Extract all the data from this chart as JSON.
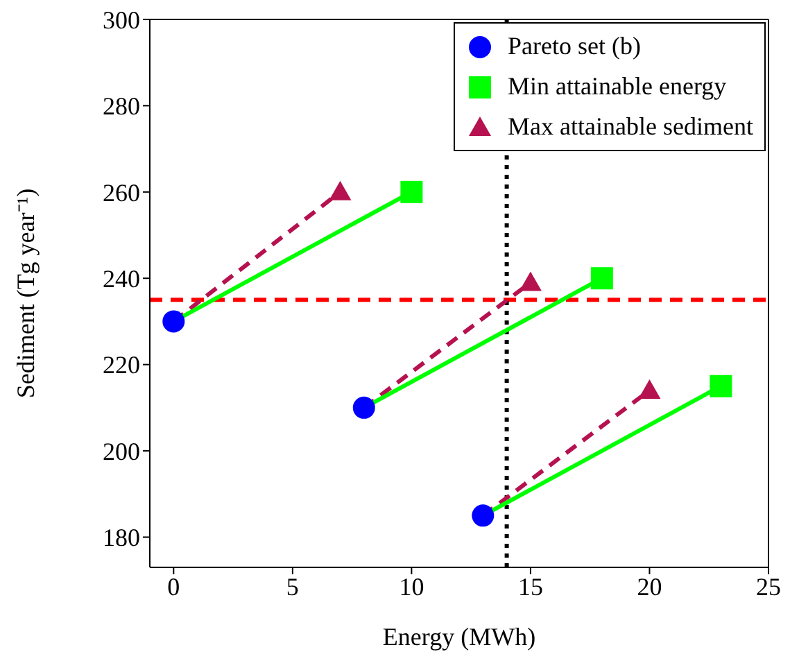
{
  "chart_data": {
    "type": "scatter",
    "xlabel": "Energy (MWh)",
    "ylabel": "Sediment (Tg year⁻¹)",
    "xlim": [
      -1,
      25
    ],
    "ylim": [
      173,
      300
    ],
    "xticks": [
      0,
      5,
      10,
      15,
      20,
      25
    ],
    "yticks": [
      180,
      200,
      220,
      240,
      260,
      280,
      300
    ],
    "legend": "top right",
    "series": [
      {
        "type": "line",
        "color": "#b5124f",
        "line_style": "dashed",
        "x": [
          0,
          7
        ],
        "values": [
          230,
          260
        ]
      },
      {
        "type": "line",
        "color": "#b5124f",
        "line_style": "dashed",
        "x": [
          8,
          15
        ],
        "values": [
          210,
          239
        ]
      },
      {
        "type": "line",
        "color": "#b5124f",
        "line_style": "dashed",
        "x": [
          13,
          20
        ],
        "values": [
          185,
          214
        ]
      },
      {
        "type": "line",
        "color": "#00ff00",
        "line_style": "solid",
        "x": [
          0,
          10
        ],
        "values": [
          230,
          260
        ]
      },
      {
        "type": "line",
        "color": "#00ff00",
        "line_style": "solid",
        "x": [
          8,
          18
        ],
        "values": [
          210,
          240
        ]
      },
      {
        "type": "line",
        "color": "#00ff00",
        "line_style": "solid",
        "x": [
          13,
          23
        ],
        "values": [
          185,
          215
        ]
      },
      {
        "name": "Pareto set (b)",
        "color": "#0000ff",
        "marker": "circle",
        "x": [
          0,
          8,
          13
        ],
        "values": [
          230,
          210,
          185
        ]
      },
      {
        "name": "Min attainable energy",
        "color": "#00ff00",
        "marker": "square",
        "x": [
          10,
          18,
          23
        ],
        "values": [
          260,
          240,
          215
        ]
      },
      {
        "name": "Max attainable sediment",
        "color": "#b5124f",
        "marker": "triangle",
        "x": [
          7,
          15,
          20
        ],
        "values": [
          260,
          239,
          214
        ]
      }
    ],
    "ref_lines": [
      {
        "axis": "y",
        "value": 235,
        "color": "#ff0000",
        "line_style": "dashed"
      },
      {
        "axis": "x",
        "value": 14,
        "color": "#000000",
        "line_style": "dotted"
      }
    ]
  }
}
